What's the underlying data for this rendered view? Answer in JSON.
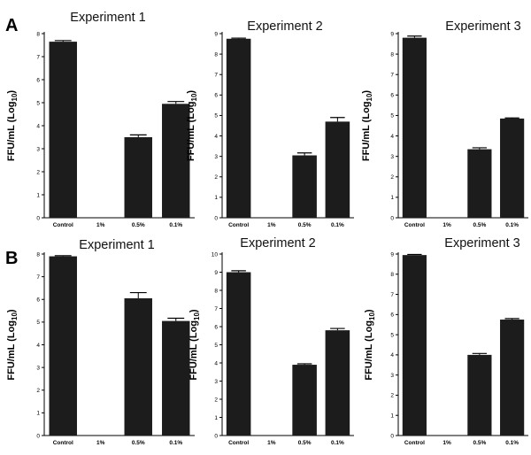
{
  "figure": {
    "panel_labels": [
      "A",
      "B"
    ]
  },
  "chart_data": [
    {
      "type": "bar",
      "row": "A",
      "title": "Experiment 1",
      "categories": [
        "Control",
        "1%",
        "0.5%",
        "0.1%"
      ],
      "values": [
        7.65,
        0,
        3.5,
        4.95
      ],
      "errors": [
        0.05,
        0,
        0.1,
        0.1
      ],
      "ylabel": "FFU/mL (Log10)",
      "ylim": [
        0,
        8
      ],
      "yticks": [
        "0",
        "1",
        "2",
        "3",
        "4",
        "5",
        "6",
        "7",
        "8"
      ]
    },
    {
      "type": "bar",
      "row": "A",
      "title": "Experiment 2",
      "categories": [
        "Control",
        "1%",
        "0.5%",
        "0.1%"
      ],
      "values": [
        8.75,
        0,
        3.05,
        4.7
      ],
      "errors": [
        0.03,
        0,
        0.12,
        0.2
      ],
      "ylabel": "FFU/mL (Log10)",
      "ylim": [
        0,
        9
      ],
      "yticks": [
        "0",
        "1",
        "2",
        "3",
        "4",
        "5",
        "6",
        "7",
        "8",
        "9"
      ]
    },
    {
      "type": "bar",
      "row": "A",
      "title": "Experiment 3",
      "categories": [
        "Control",
        "1%",
        "0.5%",
        "0.1%"
      ],
      "values": [
        8.8,
        0,
        3.35,
        4.85
      ],
      "errors": [
        0.08,
        0,
        0.07,
        0.03
      ],
      "ylabel": "FFU/mL (Log10)",
      "ylim": [
        0,
        9
      ],
      "yticks": [
        "0",
        "1",
        "2",
        "3",
        "4",
        "5",
        "6",
        "7",
        "8",
        "9"
      ]
    },
    {
      "type": "bar",
      "row": "B",
      "title": "Experiment 1",
      "categories": [
        "Control",
        "1%",
        "0.5%",
        "0.1%"
      ],
      "values": [
        7.9,
        0,
        6.05,
        5.05
      ],
      "errors": [
        0.03,
        0,
        0.25,
        0.12
      ],
      "ylabel": "FFU/mL (Log10)",
      "ylim": [
        0,
        8
      ],
      "yticks": [
        "0",
        "1",
        "2",
        "3",
        "4",
        "5",
        "6",
        "7",
        "8"
      ]
    },
    {
      "type": "bar",
      "row": "B",
      "title": "Experiment 2",
      "categories": [
        "Control",
        "1%",
        "0.5%",
        "0.1%"
      ],
      "values": [
        9.0,
        0,
        3.9,
        5.8
      ],
      "errors": [
        0.08,
        0,
        0.05,
        0.1
      ],
      "ylabel": "FFU/mL (Log10)",
      "ylim": [
        0,
        10
      ],
      "yticks": [
        "0",
        "1",
        "2",
        "3",
        "4",
        "5",
        "6",
        "7",
        "8",
        "9",
        "10"
      ]
    },
    {
      "type": "bar",
      "row": "B",
      "title": "Experiment 3",
      "categories": [
        "Control",
        "1%",
        "0.5%",
        "0.1%"
      ],
      "values": [
        8.95,
        0,
        4.0,
        5.75
      ],
      "errors": [
        0.03,
        0,
        0.07,
        0.05
      ],
      "ylabel": "FFU/mL (Log10)",
      "ylim": [
        0,
        9
      ],
      "yticks": [
        "0",
        "1",
        "2",
        "3",
        "4",
        "5",
        "6",
        "7",
        "8",
        "9"
      ]
    }
  ]
}
